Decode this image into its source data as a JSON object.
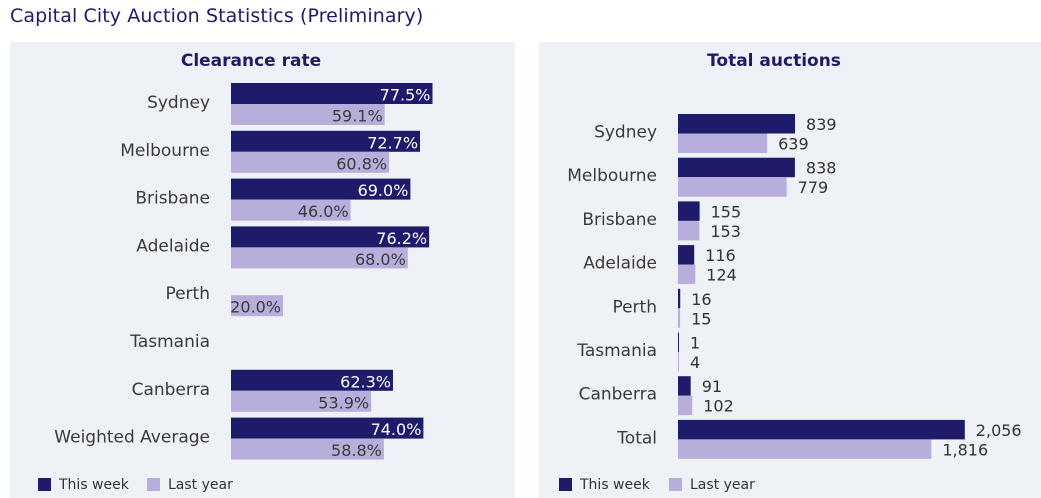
{
  "page_title": "Capital City Auction Statistics (Preliminary)",
  "colors": {
    "this_week": "#1e1b6a",
    "last_year": "#b8aedc",
    "title": "#1f1c66",
    "panel_bg": "#eef2f6"
  },
  "chart_data": [
    {
      "type": "bar",
      "orientation": "horizontal",
      "title": "Clearance rate",
      "categories": [
        "Sydney",
        "Melbourne",
        "Brisbane",
        "Adelaide",
        "Perth",
        "Tasmania",
        "Canberra",
        "Weighted Average"
      ],
      "series": [
        {
          "name": "This week",
          "values": [
            77.5,
            72.7,
            69.0,
            76.2,
            null,
            null,
            62.3,
            74.0
          ],
          "labels": [
            "77.5%",
            "72.7%",
            "69.0%",
            "76.2%",
            "",
            "",
            "62.3%",
            "74.0%"
          ]
        },
        {
          "name": "Last year",
          "values": [
            59.1,
            60.8,
            46.0,
            68.0,
            20.0,
            null,
            53.9,
            58.8
          ],
          "labels": [
            "59.1%",
            "60.8%",
            "46.0%",
            "68.0%",
            "20.0%",
            "",
            "53.9%",
            "58.8%"
          ]
        }
      ],
      "label_position": "inside-end",
      "legend": "bottom-left"
    },
    {
      "type": "bar",
      "orientation": "horizontal",
      "title": "Total auctions",
      "categories": [
        "Sydney",
        "Melbourne",
        "Brisbane",
        "Adelaide",
        "Perth",
        "Tasmania",
        "Canberra",
        "Total"
      ],
      "series": [
        {
          "name": "This week",
          "values": [
            839,
            838,
            155,
            116,
            16,
            1,
            91,
            2056
          ],
          "labels": [
            "839",
            "838",
            "155",
            "116",
            "16",
            "1",
            "91",
            "2,056"
          ]
        },
        {
          "name": "Last year",
          "values": [
            639,
            779,
            153,
            124,
            15,
            4,
            102,
            1816
          ],
          "labels": [
            "639",
            "779",
            "153",
            "124",
            "15",
            "4",
            "102",
            "1,816"
          ]
        }
      ],
      "label_position": "outside-end",
      "legend": "bottom-left"
    }
  ]
}
